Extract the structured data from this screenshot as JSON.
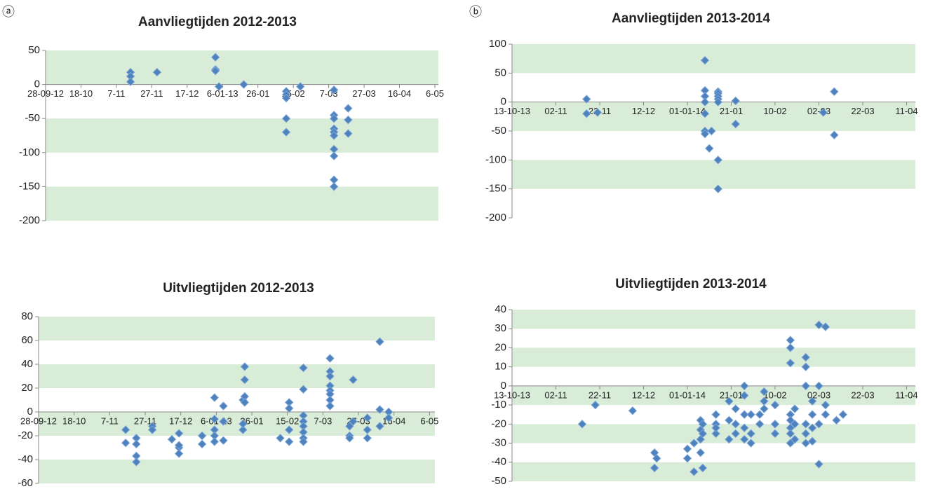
{
  "chart_data": [
    {
      "type": "scatter",
      "panel_label": "ⓐ",
      "title": "Aanvliegtijden 2012-2013",
      "color": "#4f81bd",
      "band_color": "#d8ecd8",
      "bands": true,
      "xlim": [
        0,
        222
      ],
      "ylim": [
        -200,
        50
      ],
      "xticks": [
        {
          "value": 0,
          "label": "28-09-12"
        },
        {
          "value": 20,
          "label": "18-10"
        },
        {
          "value": 40,
          "label": "7-11"
        },
        {
          "value": 60,
          "label": "27-11"
        },
        {
          "value": 80,
          "label": "17-12"
        },
        {
          "value": 100,
          "label": "6-01-13"
        },
        {
          "value": 120,
          "label": "26-01"
        },
        {
          "value": 140,
          "label": "15-02"
        },
        {
          "value": 160,
          "label": "7-03"
        },
        {
          "value": 180,
          "label": "27-03"
        },
        {
          "value": 200,
          "label": "16-04"
        },
        {
          "value": 220,
          "label": "6-05"
        }
      ],
      "yticks": [
        50,
        0,
        -50,
        -100,
        -150,
        -200
      ],
      "x": [
        48,
        48,
        48,
        63,
        96,
        96,
        96,
        98,
        112,
        136,
        136,
        136,
        136,
        136,
        144,
        163,
        163,
        163,
        163,
        163,
        163,
        163,
        163,
        163,
        163,
        171,
        171,
        171
      ],
      "y": [
        18,
        12,
        4,
        18,
        40,
        22,
        20,
        -3,
        0,
        -10,
        -15,
        -20,
        -50,
        -70,
        -3,
        -8,
        -45,
        -50,
        -65,
        -70,
        -75,
        -95,
        -105,
        -140,
        -150,
        -35,
        -52,
        -72
      ]
    },
    {
      "type": "scatter",
      "panel_label": "ⓑ",
      "title": "Aanvliegtijden 2013-2014",
      "color": "#4f81bd",
      "band_color": "#d8ecd8",
      "bands": true,
      "xlim": [
        0,
        184
      ],
      "ylim": [
        -200,
        100
      ],
      "xticks": [
        {
          "value": 0,
          "label": "13-10-13"
        },
        {
          "value": 20,
          "label": "02-11"
        },
        {
          "value": 40,
          "label": "22-11"
        },
        {
          "value": 60,
          "label": "12-12"
        },
        {
          "value": 80,
          "label": "01-01-14"
        },
        {
          "value": 100,
          "label": "21-01"
        },
        {
          "value": 120,
          "label": "10-02"
        },
        {
          "value": 140,
          "label": "02-03"
        },
        {
          "value": 160,
          "label": "22-03"
        },
        {
          "value": 180,
          "label": "11-04"
        }
      ],
      "yticks": [
        100,
        50,
        0,
        -50,
        -100,
        -150,
        -200
      ],
      "x": [
        34,
        34,
        39,
        88,
        88,
        88,
        88,
        88,
        88,
        88,
        90,
        91,
        94,
        94,
        94,
        94,
        94,
        94,
        94,
        102,
        102,
        142,
        147,
        147
      ],
      "y": [
        5,
        -20,
        -18,
        72,
        20,
        10,
        0,
        -20,
        -50,
        -55,
        -80,
        -50,
        18,
        15,
        10,
        5,
        0,
        -100,
        -150,
        2,
        -38,
        -18,
        18,
        -57
      ]
    },
    {
      "type": "scatter",
      "title": "Uitvliegtijden 2012-2013",
      "color": "#4f81bd",
      "band_color": "#d8ecd8",
      "bands": true,
      "xlim": [
        0,
        223
      ],
      "ylim": [
        -60,
        80
      ],
      "xticks": [
        {
          "value": 0,
          "label": "28-09-12"
        },
        {
          "value": 20,
          "label": "18-10"
        },
        {
          "value": 40,
          "label": "7-11"
        },
        {
          "value": 60,
          "label": "27-11"
        },
        {
          "value": 80,
          "label": "17-12"
        },
        {
          "value": 100,
          "label": "6-01-13"
        },
        {
          "value": 120,
          "label": "26-01"
        },
        {
          "value": 140,
          "label": "15-02"
        },
        {
          "value": 160,
          "label": "7-03"
        },
        {
          "value": 180,
          "label": "27-03"
        },
        {
          "value": 200,
          "label": "16-04"
        },
        {
          "value": 220,
          "label": "6-05"
        }
      ],
      "yticks": [
        80,
        60,
        40,
        20,
        0,
        -20,
        -40,
        -60
      ],
      "x": [
        49,
        49,
        55,
        55,
        55,
        55,
        64,
        64,
        75,
        79,
        79,
        79,
        79,
        92,
        92,
        99,
        99,
        99,
        99,
        99,
        104,
        104,
        104,
        115,
        115,
        115,
        116,
        116,
        116,
        116,
        136,
        141,
        141,
        141,
        141,
        149,
        149,
        149,
        149,
        149,
        149,
        149,
        149,
        164,
        164,
        164,
        164,
        164,
        164,
        164,
        164,
        175,
        175,
        175,
        177,
        177,
        185,
        185,
        185,
        192,
        192,
        192,
        197,
        197
      ],
      "y": [
        -15,
        -26,
        -22,
        -27,
        -37,
        -42,
        -12,
        -15,
        -23,
        -30,
        -35,
        -18,
        -28,
        -20,
        -27,
        12,
        -6,
        -15,
        -20,
        -25,
        5,
        -8,
        -24,
        -15,
        -10,
        10,
        38,
        27,
        13,
        8,
        -22,
        8,
        3,
        -15,
        -25,
        37,
        19,
        -3,
        -8,
        -12,
        -17,
        -22,
        -25,
        45,
        34,
        30,
        22,
        18,
        15,
        10,
        5,
        -20,
        -22,
        -12,
        27,
        -8,
        -5,
        -15,
        -22,
        59,
        2,
        -12,
        0,
        -5
      ]
    },
    {
      "type": "scatter",
      "title": "Uitvliegtijden 2013-2014",
      "color": "#4f81bd",
      "band_color": "#d8ecd8",
      "bands": true,
      "xlim": [
        0,
        184
      ],
      "ylim": [
        -50,
        40
      ],
      "xticks": [
        {
          "value": 0,
          "label": "13-10-13"
        },
        {
          "value": 20,
          "label": "02-11"
        },
        {
          "value": 40,
          "label": "22-11"
        },
        {
          "value": 60,
          "label": "12-12"
        },
        {
          "value": 80,
          "label": "01-01-14"
        },
        {
          "value": 100,
          "label": "21-01"
        },
        {
          "value": 120,
          "label": "10-02"
        },
        {
          "value": 140,
          "label": "02-03"
        },
        {
          "value": 160,
          "label": "22-03"
        },
        {
          "value": 180,
          "label": "11-04"
        }
      ],
      "yticks": [
        40,
        30,
        20,
        10,
        0,
        -10,
        -20,
        -30,
        -40,
        -50
      ],
      "x": [
        32,
        38,
        55,
        65,
        65,
        66,
        80,
        80,
        83,
        83,
        86,
        86,
        86,
        86,
        87,
        87,
        87,
        93,
        93,
        93,
        93,
        99,
        99,
        99,
        102,
        102,
        102,
        106,
        106,
        106,
        106,
        106,
        109,
        109,
        109,
        113,
        113,
        115,
        115,
        115,
        120,
        120,
        120,
        127,
        127,
        127,
        127,
        127,
        127,
        127,
        127,
        129,
        129,
        129,
        134,
        134,
        134,
        134,
        134,
        134,
        137,
        137,
        137,
        137,
        140,
        140,
        140,
        140,
        143,
        143,
        143,
        148,
        151
      ],
      "y": [
        -20,
        -10,
        -13,
        -35,
        -43,
        -38,
        -33,
        -38,
        -45,
        -30,
        -28,
        -35,
        -18,
        -23,
        -43,
        -25,
        -20,
        -15,
        -20,
        -25,
        -22,
        -8,
        -18,
        -28,
        -12,
        -20,
        -25,
        0,
        -5,
        -15,
        -22,
        -28,
        -15,
        -25,
        -30,
        -20,
        -15,
        -3,
        -8,
        -12,
        -20,
        -25,
        -10,
        24,
        20,
        12,
        -15,
        -18,
        -22,
        -25,
        -30,
        -12,
        -20,
        -28,
        15,
        10,
        0,
        -20,
        -25,
        -30,
        -8,
        -15,
        -22,
        -29,
        32,
        0,
        -20,
        -41,
        31,
        -15,
        -10,
        -18,
        -15
      ]
    }
  ]
}
